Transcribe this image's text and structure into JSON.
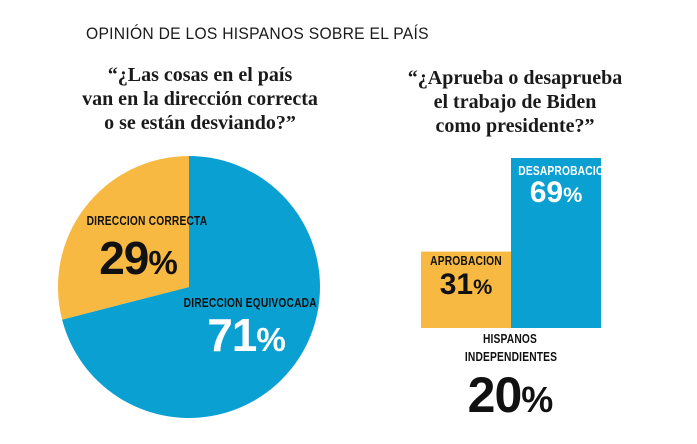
{
  "title": "OPINIÓN DE LOS HISPANOS SOBRE EL PAÍS",
  "colors": {
    "blue": "#0aa0d2",
    "yellow": "#f7b942",
    "text": "#111111"
  },
  "chart_data": [
    {
      "type": "pie",
      "question": [
        "“¿Las cosas en el país",
        "van en la dirección correcta",
        "o se están desviando?”"
      ],
      "slices": [
        {
          "label": "DIRECCION CORRECTA",
          "value": 29,
          "value_text": "29",
          "color": "#f7b942"
        },
        {
          "label": "DIRECCION EQUIVOCADA",
          "value": 71,
          "value_text": "71",
          "color": "#0aa0d2"
        }
      ],
      "unit": "%"
    },
    {
      "type": "bar",
      "question": [
        "“¿Aprueba o desaprueba",
        "el trabajo de Biden",
        "como presidente?”"
      ],
      "categories": [
        "APROBACION",
        "DESAPROBACION"
      ],
      "values": [
        31,
        69
      ],
      "value_texts": [
        "31",
        "69"
      ],
      "colors": [
        "#f7b942",
        "#0aa0d2"
      ],
      "unit": "%",
      "group_label": [
        "HISPANOS",
        "INDEPENDIENTES"
      ],
      "group_value": 20,
      "group_value_text": "20"
    }
  ]
}
